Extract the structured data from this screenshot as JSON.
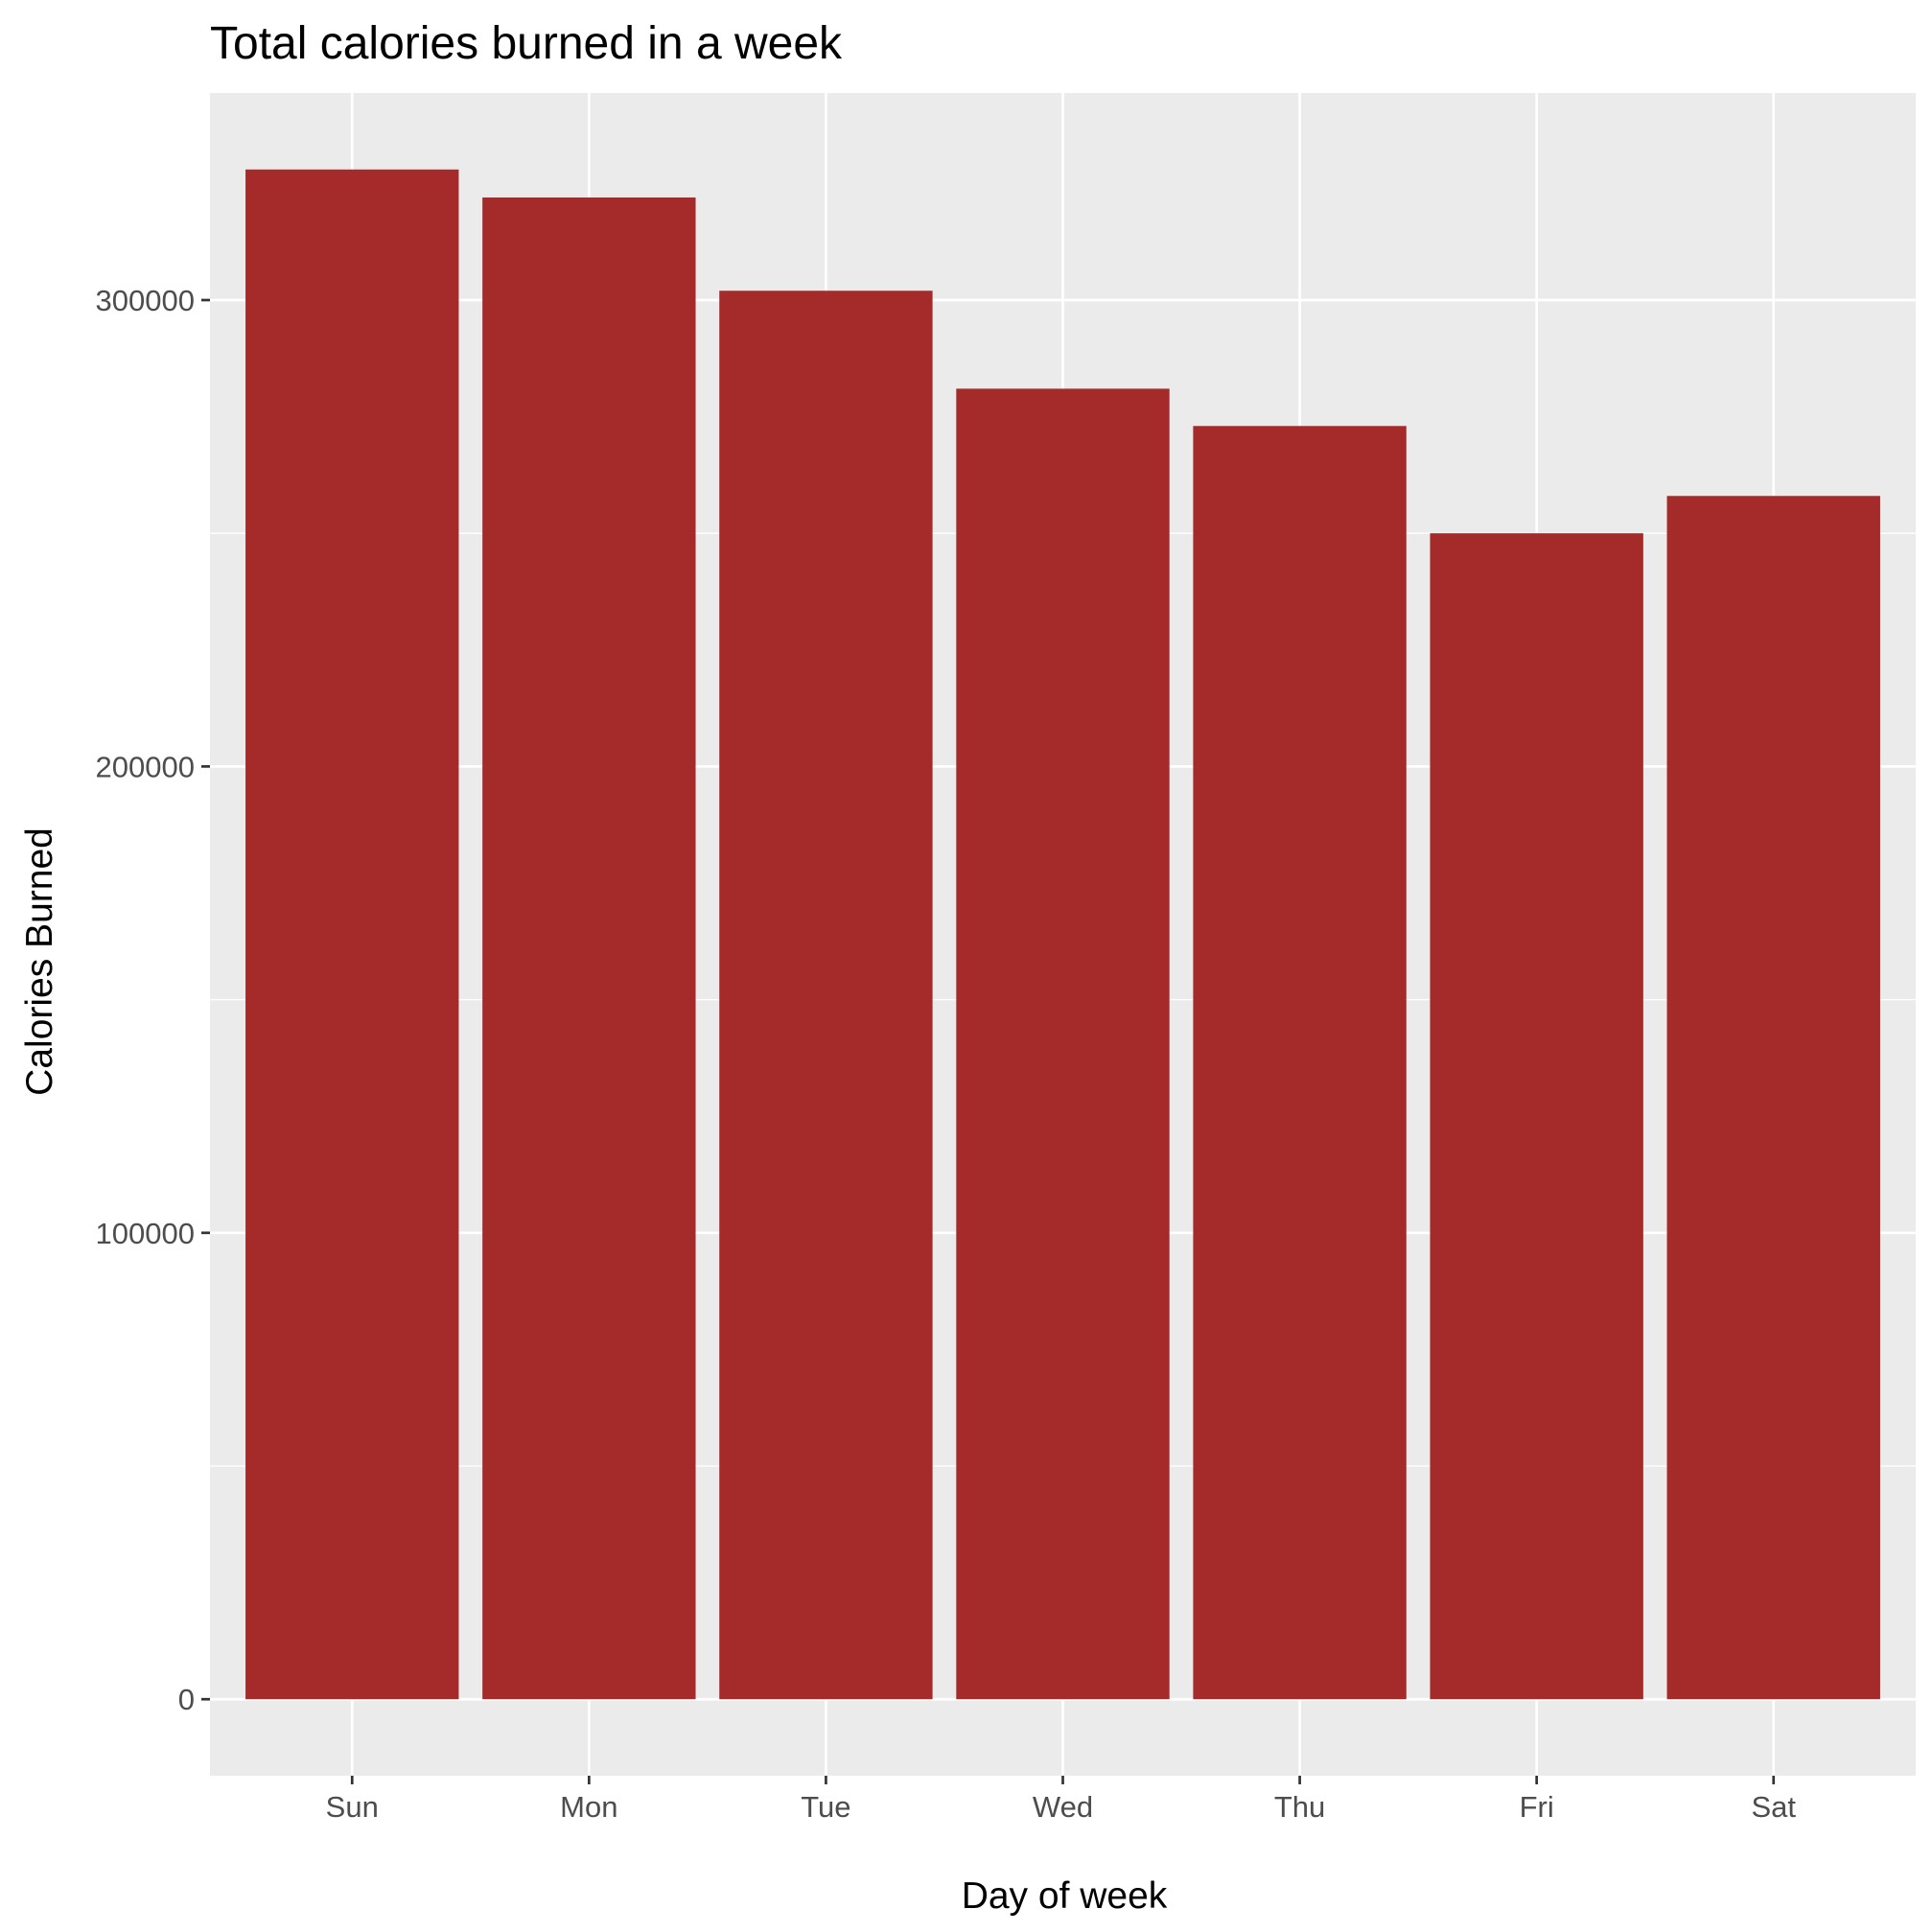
{
  "chart_data": {
    "type": "bar",
    "title": "Total calories burned in a week",
    "xlabel": "Day of week",
    "ylabel": "Calories Burned",
    "categories": [
      "Sun",
      "Mon",
      "Tue",
      "Wed",
      "Thu",
      "Fri",
      "Sat"
    ],
    "values": [
      328000,
      322000,
      302000,
      281000,
      273000,
      250000,
      258000
    ],
    "ylim": [
      -16400,
      344400
    ],
    "yticks": [
      0,
      100000,
      200000,
      300000
    ],
    "ytick_labels": [
      "0",
      "100000",
      "200000",
      "300000"
    ],
    "grid": true,
    "legend": "none",
    "colors": {
      "bar": "#a52a2a",
      "panel": "#ebebeb",
      "grid": "#ffffff",
      "tick": "#333333"
    }
  }
}
